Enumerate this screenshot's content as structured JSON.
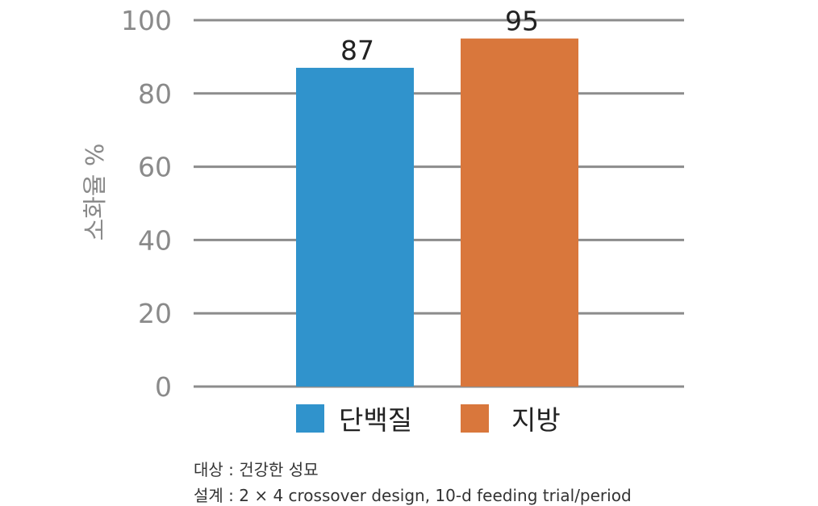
{
  "chart_data": {
    "type": "bar",
    "categories": [
      "단백질",
      "지방"
    ],
    "values": [
      87,
      95
    ],
    "ylabel": "소화율 %",
    "xlabel": "",
    "ylim": [
      0,
      100
    ],
    "yticks": [
      0,
      20,
      40,
      60,
      80,
      100
    ],
    "grid": true,
    "legend": "bottom",
    "colors": [
      "#3093cc",
      "#d9773c"
    ],
    "grid_color": "#8c8c8c",
    "data_labels": [
      "87",
      "95"
    ]
  },
  "notes": {
    "subject": "대상 : 건강한 성묘",
    "design": "설계 : 2 × 4 crossover design, 10-d feeding trial/period"
  }
}
